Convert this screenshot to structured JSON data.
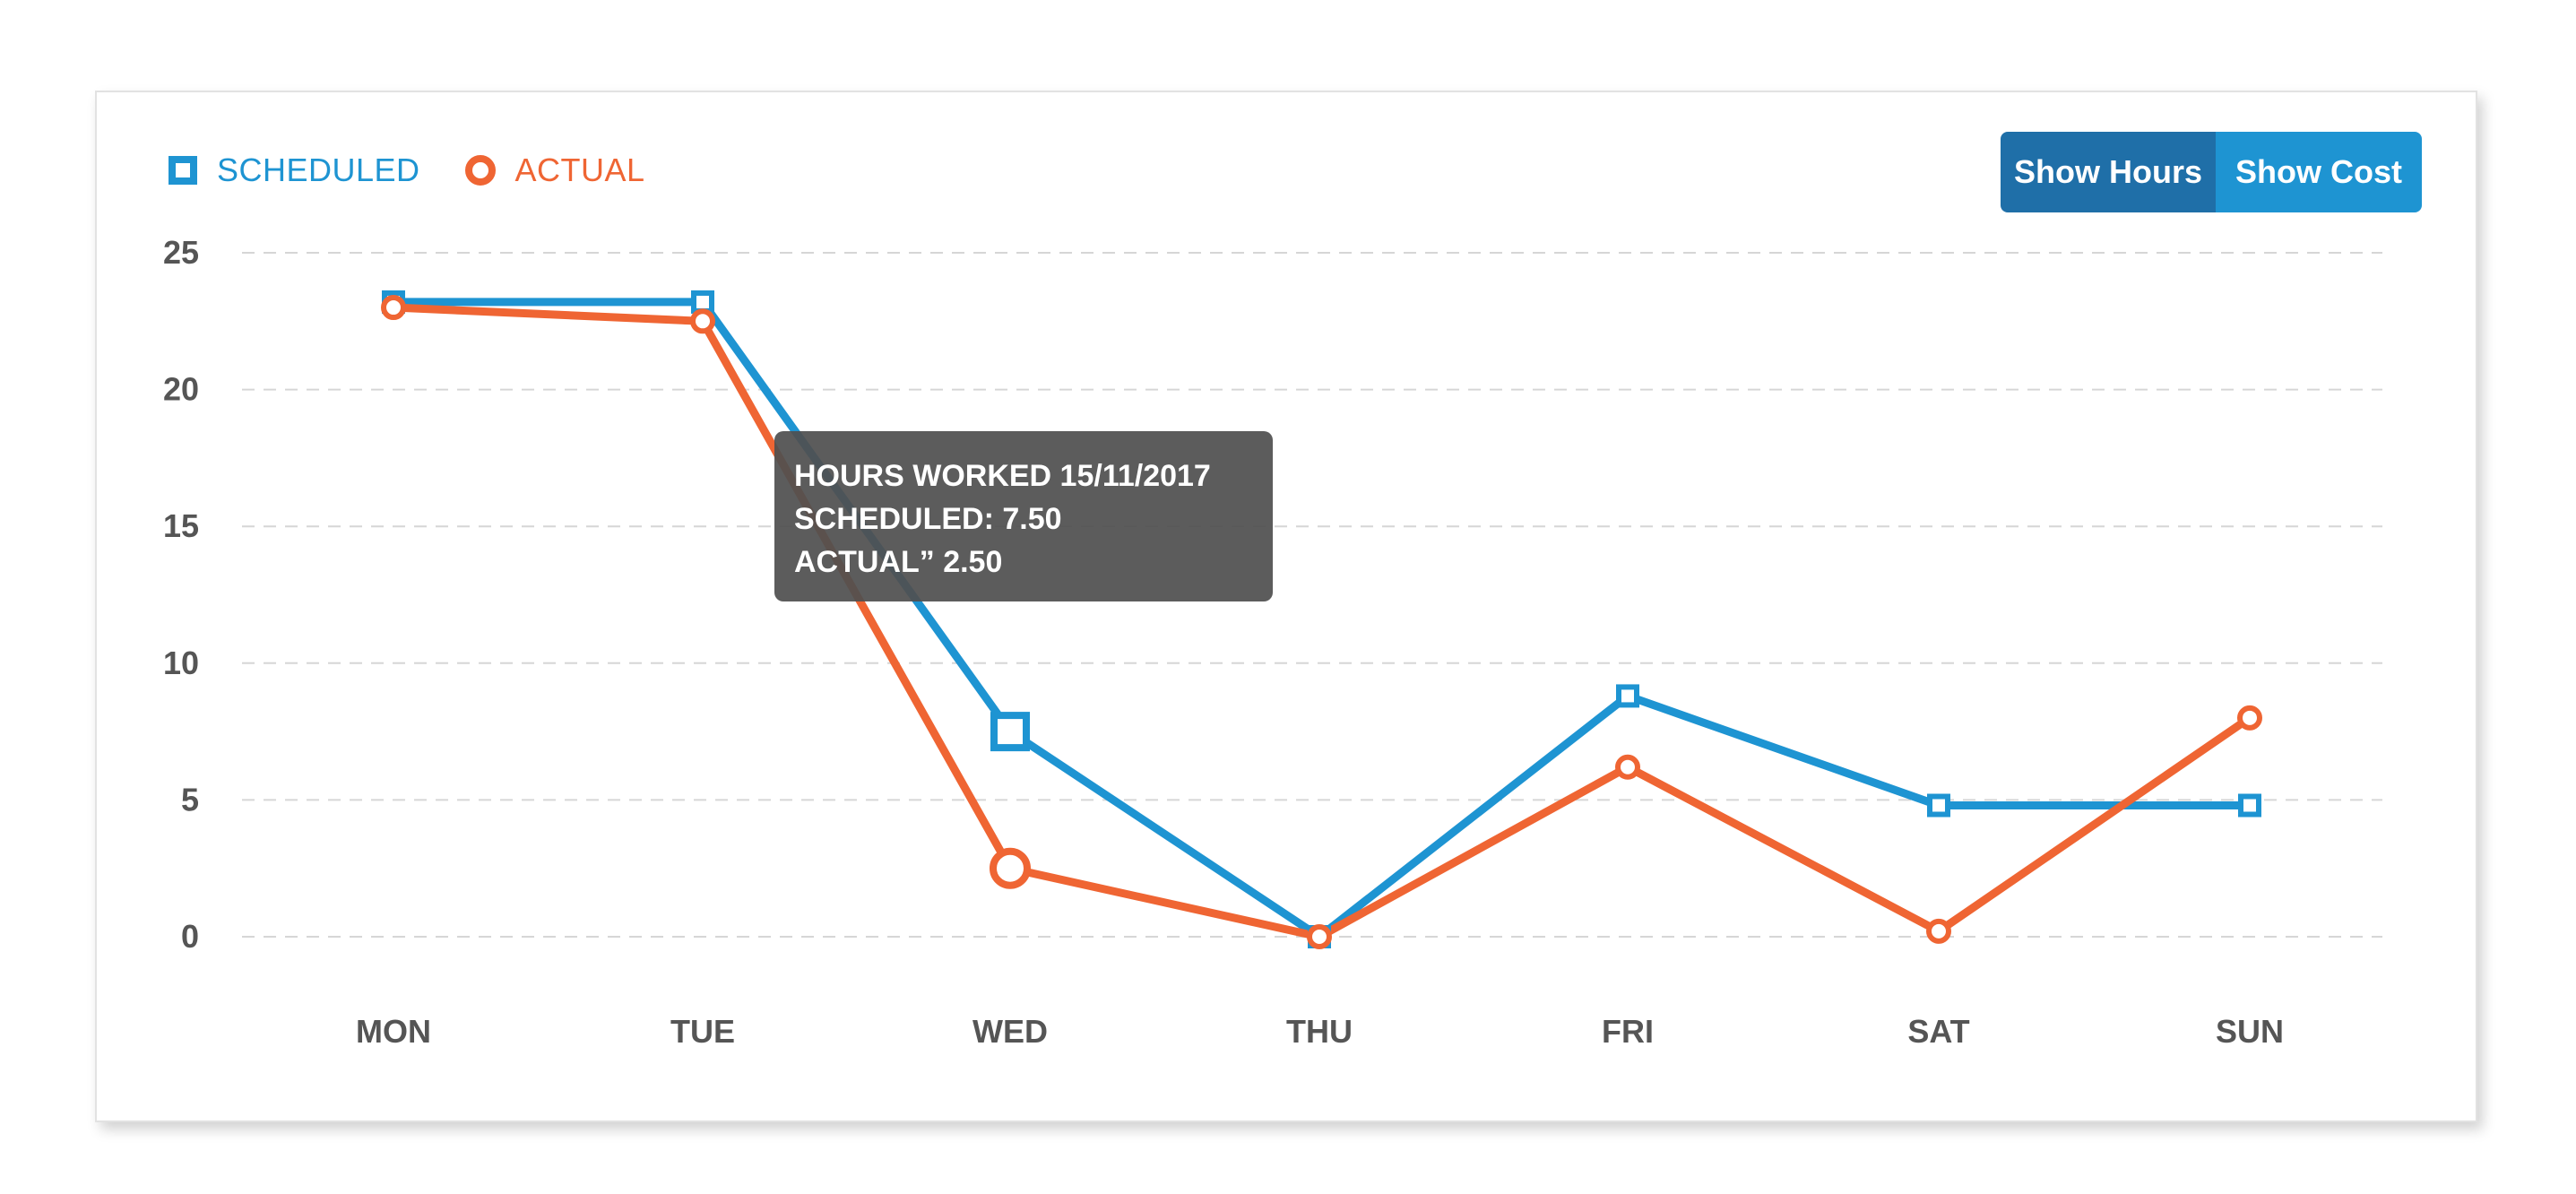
{
  "legend": {
    "scheduled": "SCHEDULED",
    "actual": "ACTUAL"
  },
  "toggle": {
    "hours_label": "Show Hours",
    "cost_label": "Show Cost",
    "selected": "Show Hours"
  },
  "tooltip": {
    "title": "HOURS WORKED 15/11/2017",
    "scheduled": "SCHEDULED: 7.50",
    "actual": "ACTUAL” 2.50"
  },
  "colors": {
    "scheduled": "#1e94d2",
    "actual": "#ef6533",
    "toggle_active": "#1f6fa8",
    "toggle_inactive": "#1e94d2",
    "axis_text": "#555555",
    "grid": "#d6d6d6"
  },
  "chart_data": {
    "type": "line",
    "categories": [
      "MON",
      "TUE",
      "WED",
      "THU",
      "FRI",
      "SAT",
      "SUN"
    ],
    "series": [
      {
        "name": "SCHEDULED",
        "marker": "square",
        "values": [
          23.2,
          23.2,
          7.5,
          0,
          8.8,
          4.8,
          4.8
        ]
      },
      {
        "name": "ACTUAL",
        "marker": "circle",
        "values": [
          23.0,
          22.5,
          2.5,
          0,
          6.2,
          0.2,
          8.0
        ]
      }
    ],
    "yticks": [
      0,
      5,
      10,
      15,
      20,
      25
    ],
    "ylim": [
      0,
      25
    ],
    "grid": true,
    "highlight_index": 2,
    "legend_position": "top-left"
  }
}
